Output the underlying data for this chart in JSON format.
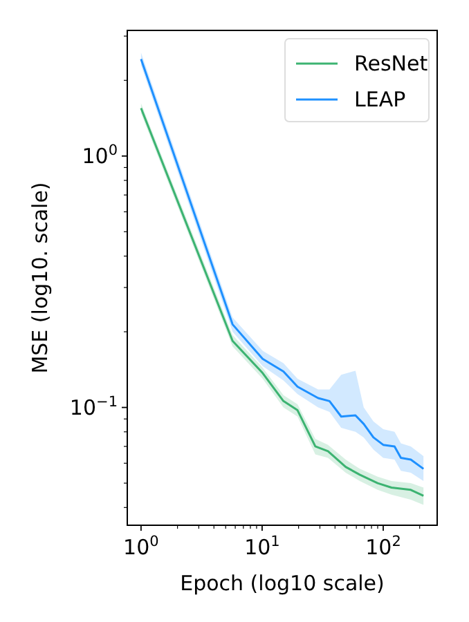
{
  "chart_data": {
    "type": "line",
    "xlabel": "Epoch (log10 scale)",
    "ylabel": "MSE (log10. scale)",
    "log": "xy",
    "grid": false,
    "legend": "top right",
    "line_style": "solid",
    "marker": "none",
    "xlim": [
      0.77,
      279
    ],
    "ylim": [
      0.034,
      3.16
    ],
    "xticks": [
      {
        "value": 1,
        "label": "10$^{0}$"
      },
      {
        "value": 2,
        "label": null
      },
      {
        "value": 3,
        "label": null
      },
      {
        "value": 4,
        "label": null
      },
      {
        "value": 5,
        "label": null
      },
      {
        "value": 6,
        "label": null
      },
      {
        "value": 7,
        "label": null
      },
      {
        "value": 8,
        "label": null
      },
      {
        "value": 9,
        "label": null
      },
      {
        "value": 10,
        "label": "10$^{1}$"
      },
      {
        "value": 20,
        "label": null
      },
      {
        "value": 30,
        "label": null
      },
      {
        "value": 40,
        "label": null
      },
      {
        "value": 50,
        "label": null
      },
      {
        "value": 60,
        "label": null
      },
      {
        "value": 70,
        "label": null
      },
      {
        "value": 80,
        "label": null
      },
      {
        "value": 90,
        "label": null
      },
      {
        "value": 100,
        "label": "10$^{2}$"
      },
      {
        "value": 200,
        "label": null
      }
    ],
    "yticks": [
      {
        "value": 0.04,
        "label": null
      },
      {
        "value": 0.05,
        "label": null
      },
      {
        "value": 0.06,
        "label": null
      },
      {
        "value": 0.07,
        "label": null
      },
      {
        "value": 0.08,
        "label": null
      },
      {
        "value": 0.09,
        "label": null
      },
      {
        "value": 0.1,
        "label": "10$^{−1}$"
      },
      {
        "value": 0.2,
        "label": null
      },
      {
        "value": 0.3,
        "label": null
      },
      {
        "value": 0.4,
        "label": null
      },
      {
        "value": 0.5,
        "label": null
      },
      {
        "value": 0.6,
        "label": null
      },
      {
        "value": 0.7,
        "label": null
      },
      {
        "value": 0.8,
        "label": null
      },
      {
        "value": 0.9,
        "label": null
      },
      {
        "value": 1,
        "label": "10$^{0}$"
      },
      {
        "value": 2,
        "label": null
      },
      {
        "value": 3,
        "label": null
      }
    ],
    "series": [
      {
        "name": "ResNet",
        "color": "#3cb371",
        "x": [
          1,
          5.7,
          10.1,
          15,
          19.6,
          27.5,
          35,
          49,
          64,
          90,
          117,
          169,
          215
        ],
        "values": [
          1.55,
          0.184,
          0.137,
          0.106,
          0.0975,
          0.07,
          0.067,
          0.058,
          0.054,
          0.05,
          0.048,
          0.047,
          0.0445
        ],
        "lower": [
          1.48,
          0.175,
          0.13,
          0.1,
          0.092,
          0.065,
          0.063,
          0.055,
          0.051,
          0.047,
          0.045,
          0.043,
          0.041
        ],
        "upper": [
          1.62,
          0.194,
          0.144,
          0.112,
          0.103,
          0.075,
          0.071,
          0.062,
          0.057,
          0.053,
          0.051,
          0.05,
          0.048
        ]
      },
      {
        "name": "LEAP",
        "color": "#1e90ff",
        "x": [
          1,
          5.7,
          10.1,
          15,
          19.6,
          29,
          36,
          45,
          59,
          69,
          83,
          100,
          124,
          140,
          169,
          215
        ],
        "values": [
          2.43,
          0.214,
          0.156,
          0.139,
          0.121,
          0.109,
          0.106,
          0.092,
          0.093,
          0.086,
          0.076,
          0.071,
          0.07,
          0.063,
          0.062,
          0.057
        ],
        "lower": [
          2.3,
          0.2,
          0.146,
          0.128,
          0.113,
          0.1,
          0.096,
          0.083,
          0.08,
          0.076,
          0.068,
          0.063,
          0.062,
          0.056,
          0.055,
          0.051
        ],
        "upper": [
          2.58,
          0.228,
          0.168,
          0.15,
          0.13,
          0.118,
          0.118,
          0.135,
          0.14,
          0.1,
          0.088,
          0.082,
          0.08,
          0.072,
          0.07,
          0.064
        ]
      }
    ]
  }
}
